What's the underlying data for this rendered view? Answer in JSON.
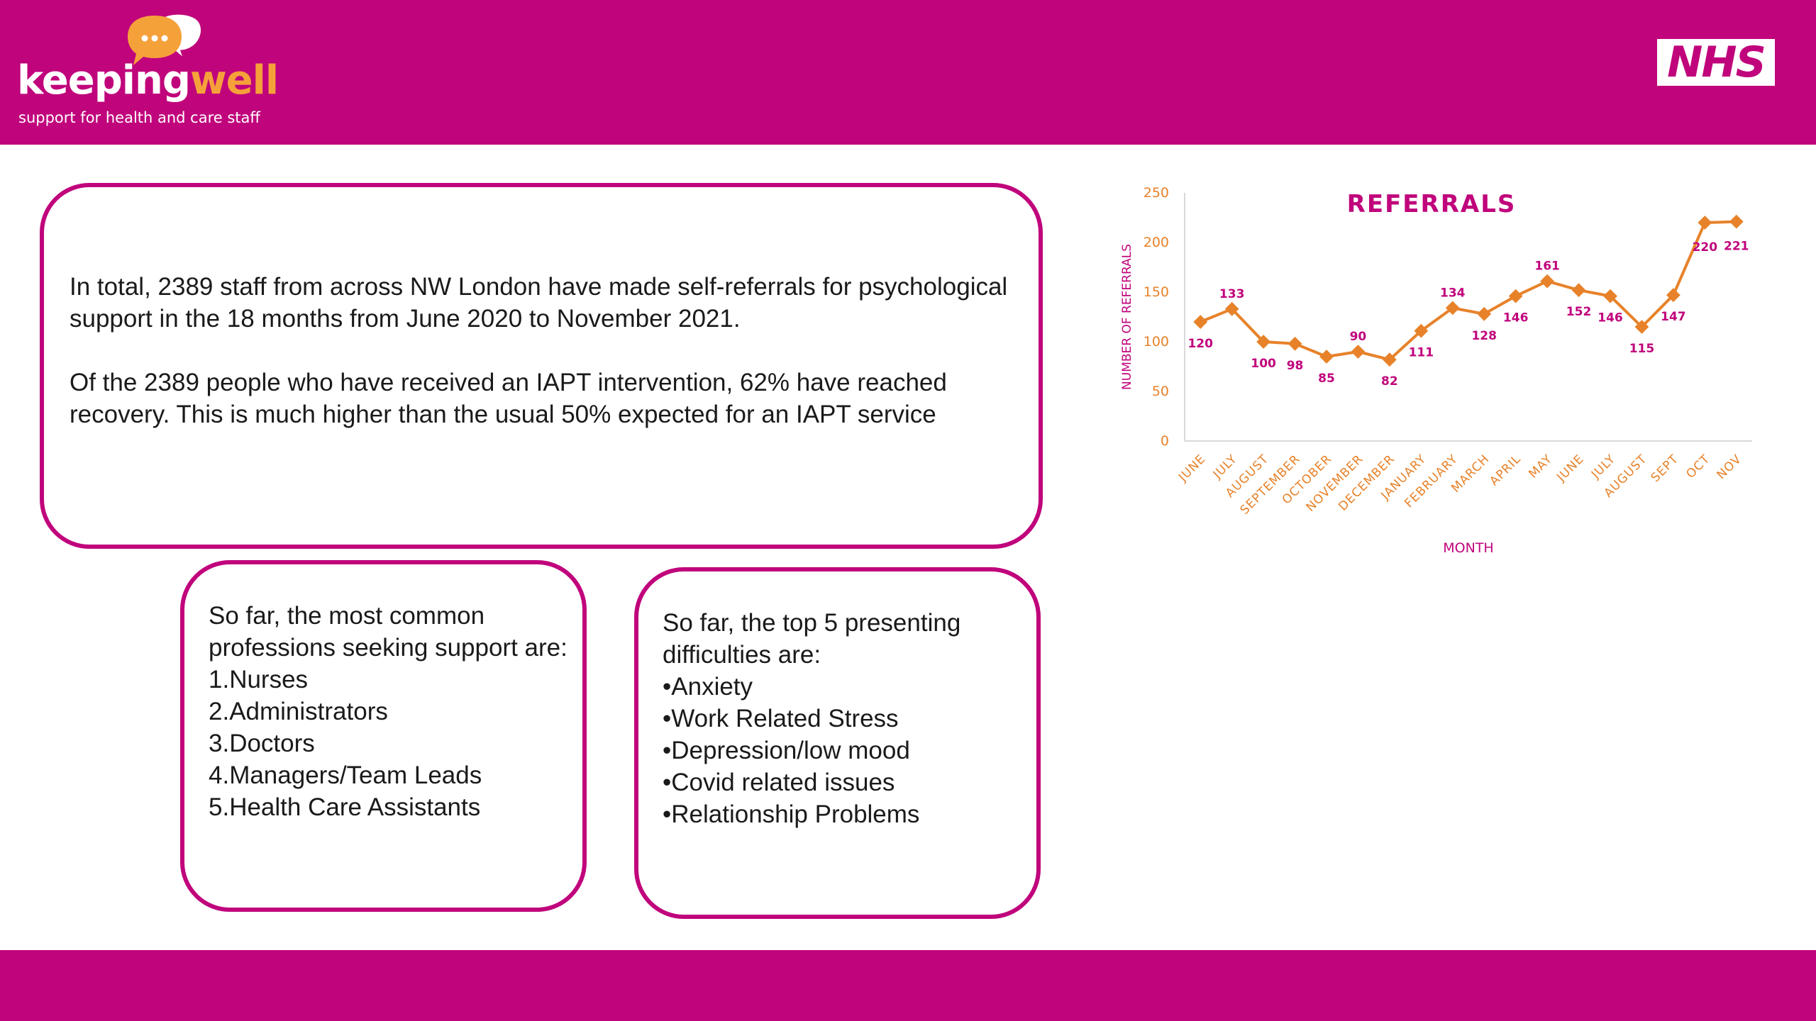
{
  "brand": {
    "logo_word_1": "keeping",
    "logo_word_2": "well",
    "logo_tagline": "support for health and care staff",
    "nhs_logo": "NHS"
  },
  "colors": {
    "brand_magenta": "#c0047c",
    "accent_orange": "#e7822a",
    "logo_orange": "#f5a13a"
  },
  "intro": {
    "paragraph_1": "In total, 2389 staff from across NW London have made self-referrals for psychological support in the 18 months from June 2020 to November 2021.",
    "paragraph_2": "Of the 2389 people who have received an IAPT intervention, 62% have reached recovery. This is much higher than the usual 50% expected for an IAPT service"
  },
  "professions": {
    "heading": "So far, the most common professions seeking support are:",
    "items": [
      "1.Nurses",
      "2.Administrators",
      "3.Doctors",
      "4.Managers/Team Leads",
      "5.Health Care Assistants"
    ]
  },
  "difficulties": {
    "heading": "So far, the top 5 presenting difficulties are:",
    "items": [
      "•Anxiety",
      "•Work Related Stress",
      "•Depression/low mood",
      "•Covid related issues",
      "•Relationship Problems"
    ]
  },
  "chart_data": {
    "type": "line",
    "title": "REFERRALS",
    "xlabel": "MONTH",
    "ylabel": "NUMBER OF REFERRALS",
    "categories": [
      "JUNE",
      "JULY",
      "AUGUST",
      "SEPTEMBER",
      "OCTOBER",
      "NOVEMBER",
      "DECEMBER",
      "JANUARY",
      "FEBRUARY",
      "MARCH",
      "APRIL",
      "MAY",
      "JUNE",
      "JULY",
      "AUGUST",
      "SEPT",
      "OCT",
      "NOV"
    ],
    "series": [
      {
        "values": [
          120,
          133,
          100,
          98,
          85,
          90,
          82,
          111,
          134,
          128,
          146,
          161,
          152,
          146,
          115,
          147,
          220,
          221
        ]
      }
    ],
    "ylim": [
      0,
      250
    ],
    "yticks": [
      0,
      50,
      100,
      150,
      200,
      250
    ],
    "grid": false,
    "legend": "none"
  }
}
